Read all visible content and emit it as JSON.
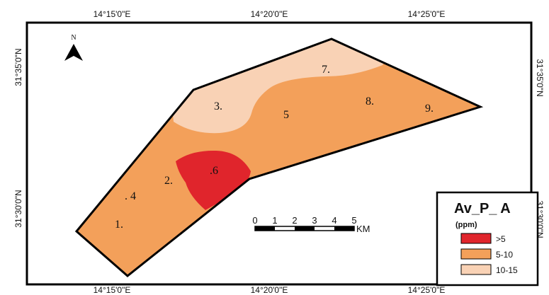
{
  "graticule": {
    "top_labels": [
      "14°15'0\"E",
      "14°20'0\"E",
      "14°25'0\"E"
    ],
    "bottom_labels": [
      "14°15'0\"E",
      "14°20'0\"E",
      "14°25'0\"E"
    ],
    "left_labels": [
      "31°35'0\"N",
      "31°30'0\"N"
    ],
    "right_labels": [
      "31°35'0\"N",
      "31°30'0\"N"
    ]
  },
  "north_arrow": {
    "label": "N"
  },
  "points": [
    {
      "id": "1",
      "label": "1."
    },
    {
      "id": "2",
      "label": "2."
    },
    {
      "id": "3",
      "label": "3."
    },
    {
      "id": "4",
      "label": ". 4"
    },
    {
      "id": "5",
      "label": "5"
    },
    {
      "id": "6",
      "label": ".6"
    },
    {
      "id": "7",
      "label": "7."
    },
    {
      "id": "8",
      "label": "8."
    },
    {
      "id": "9",
      "label": "9."
    }
  ],
  "scale_bar": {
    "ticks": [
      "0",
      "1",
      "2",
      "3",
      "4",
      "5"
    ],
    "unit": "KM"
  },
  "legend": {
    "title": "Av_P_ A",
    "subtitle": "(ppm)",
    "items": [
      {
        "label": ">5",
        "color": "#e0252c"
      },
      {
        "label": "5-10",
        "color": "#f3a05a"
      },
      {
        "label": "10-15",
        "color": "#f9d2b5"
      }
    ]
  },
  "colors": {
    "zone_high": "#e0252c",
    "zone_mid": "#f3a05a",
    "zone_low": "#f9d2b5",
    "outline": "#000000"
  }
}
